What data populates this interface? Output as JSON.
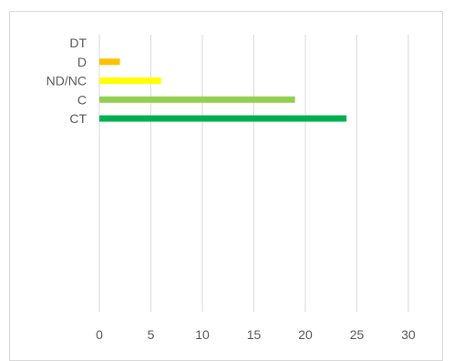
{
  "chart_data": {
    "type": "bar",
    "orientation": "horizontal",
    "categories": [
      "DT",
      "D",
      "ND/NC",
      "C",
      "CT"
    ],
    "values": [
      0,
      2,
      6,
      19,
      24
    ],
    "colors": [
      "#00b050",
      "#ffc000",
      "#ffff00",
      "#92d050",
      "#00b050"
    ],
    "xlim": [
      0,
      30
    ],
    "xticks": [
      0,
      5,
      10,
      15,
      20,
      25,
      30
    ],
    "grid": true,
    "title": "",
    "xlabel": "",
    "ylabel": ""
  }
}
